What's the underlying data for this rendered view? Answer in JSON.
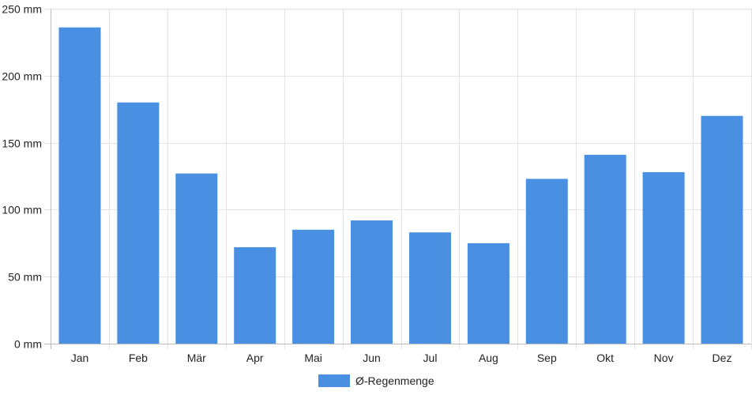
{
  "chart_data": {
    "type": "bar",
    "categories": [
      "Jan",
      "Feb",
      "Mär",
      "Apr",
      "Mai",
      "Jun",
      "Jul",
      "Aug",
      "Sep",
      "Okt",
      "Nov",
      "Dez"
    ],
    "series": [
      {
        "name": "Ø-Regenmenge",
        "values": [
          236,
          180,
          127,
          72,
          85,
          92,
          83,
          75,
          123,
          141,
          128,
          170
        ],
        "color": "#4a90e2"
      }
    ],
    "y_ticks": [
      "0 mm",
      "50 mm",
      "100 mm",
      "150 mm",
      "200 mm",
      "250 mm"
    ],
    "y_tick_values": [
      0,
      50,
      100,
      150,
      200,
      250
    ],
    "ylim": [
      0,
      250
    ],
    "grid": true,
    "legend_position": "bottom"
  }
}
